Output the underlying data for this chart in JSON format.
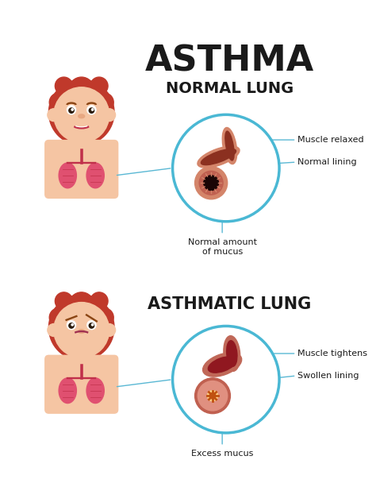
{
  "title": "ASTHMA",
  "title_fontsize": 32,
  "title_weight": "bold",
  "title_color": "#1a1a1a",
  "section1_title": "NORMAL LUNG",
  "section2_title": "ASTHMATIC LUNG",
  "section_fontsize": 14,
  "section_weight": "bold",
  "bg_color": "#ffffff",
  "circle_color": "#4ab8d4",
  "circle_lw": 2.5,
  "normal_labels": [
    "Muscle relaxed",
    "Normal lining",
    "Normal amount\nof mucus"
  ],
  "asthma_labels": [
    "Muscle tightens",
    "Swollen lining",
    "Excess mucus"
  ],
  "label_fontsize": 8,
  "skin_color": "#f5c5a3",
  "hair_color": "#c0392b",
  "lung_color": "#e05070",
  "lung_dark": "#c0304a",
  "airway_outer": "#c87060",
  "airway_inner": "#2a0a0a",
  "swollen_color": "#e08080",
  "line_color": "#5ab8d4",
  "line_lw": 1.0
}
